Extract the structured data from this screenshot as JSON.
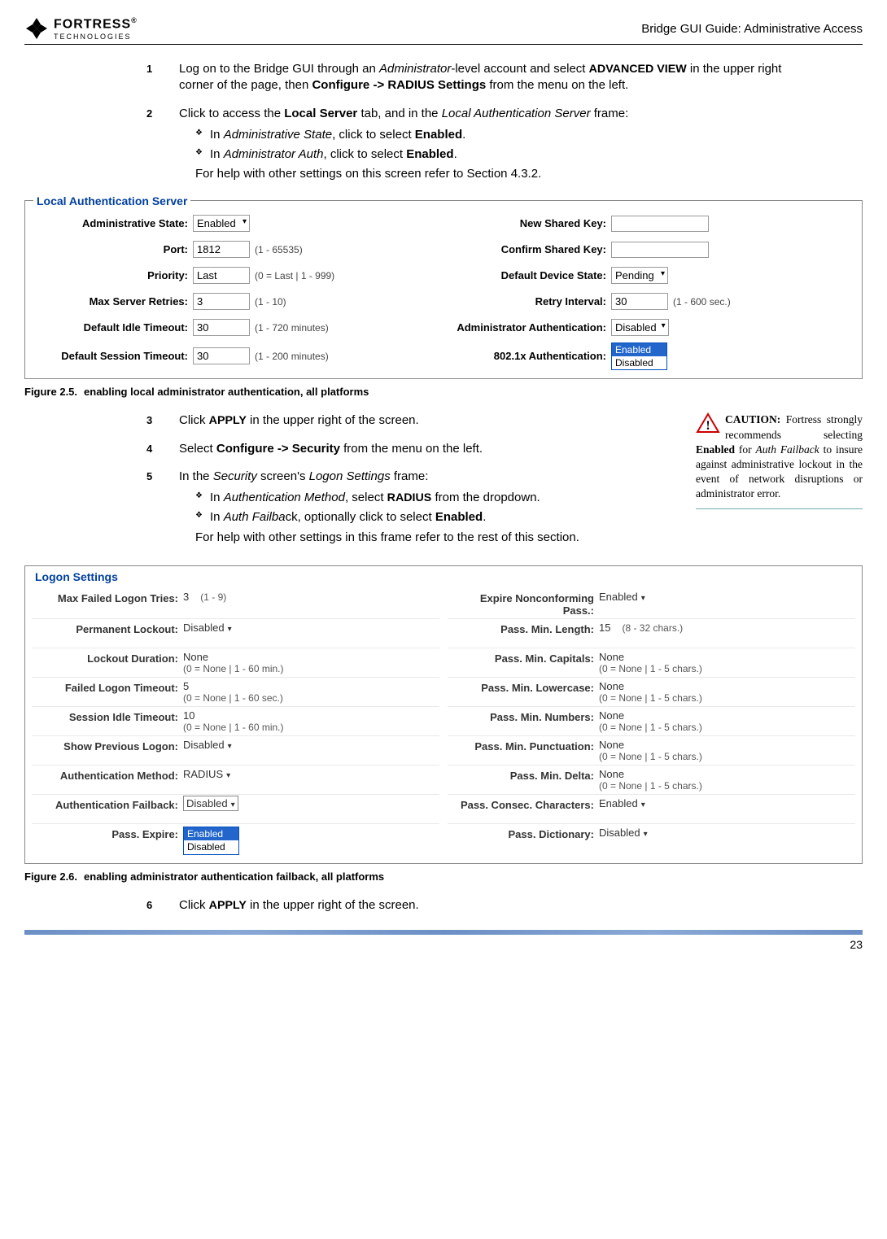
{
  "header": {
    "logo_name": "FORTRESS",
    "logo_sub": "TECHNOLOGIES",
    "guide_title": "Bridge GUI Guide: Administrative Access"
  },
  "steps": {
    "s1_num": "1",
    "s1_a": "Log on to the Bridge GUI through an ",
    "s1_b": "Administrator",
    "s1_c": "-level account and select ",
    "s1_d": "ADVANCED VIEW",
    "s1_e": " in the upper right corner of the page, then ",
    "s1_f": "Configure -> RADIUS Settings",
    "s1_g": " from the menu on the left.",
    "s2_num": "2",
    "s2_a": "Click to access the ",
    "s2_b": "Local Server",
    "s2_c": " tab, and in the ",
    "s2_d": "Local Authentication Server",
    "s2_e": " frame:",
    "s2_sub1_a": "In ",
    "s2_sub1_b": "Administrative State",
    "s2_sub1_c": ", click to select ",
    "s2_sub1_d": "Enabled",
    "s2_sub1_e": ".",
    "s2_sub2_a": "In ",
    "s2_sub2_b": "Administrator Auth",
    "s2_sub2_c": ", click to select ",
    "s2_sub2_d": "Enabled",
    "s2_sub2_e": ".",
    "s2_post": "For help with other settings on this screen refer to Section 4.3.2.",
    "s3_num": "3",
    "s3_a": "Click ",
    "s3_b": "APPLY",
    "s3_c": " in the upper right of the screen.",
    "s4_num": "4",
    "s4_a": "Select ",
    "s4_b": "Configure -> Security",
    "s4_c": " from the menu on the left.",
    "s5_num": "5",
    "s5_a": "In the ",
    "s5_b": "Security",
    "s5_c": " screen's ",
    "s5_d": "Logon Settings",
    "s5_e": " frame:",
    "s5_sub1_a": "In ",
    "s5_sub1_b": "Authentication Method",
    "s5_sub1_c": ", select ",
    "s5_sub1_d": "RADIUS",
    "s5_sub1_e": " from the dropdown.",
    "s5_sub2_a": "In ",
    "s5_sub2_b": "Auth Failba",
    "s5_sub2_c": "ck, optionally click to select ",
    "s5_sub2_d": "Enabled",
    "s5_sub2_e": ".",
    "s5_post": "For help with other settings in this frame refer to the rest of this section.",
    "s6_num": "6",
    "s6_a": "Click ",
    "s6_b": "APPLY",
    "s6_c": " in the upper right of the screen."
  },
  "fig25": {
    "num": "Figure 2.5.",
    "text": "enabling local administrator authentication, all platforms"
  },
  "fig26": {
    "num": "Figure 2.6.",
    "text": "enabling administrator authentication failback, all platforms"
  },
  "local_auth": {
    "legend": "Local Authentication Server",
    "left": [
      {
        "label": "Administrative State:",
        "value": "Enabled",
        "dropdown": true
      },
      {
        "label": "Port:",
        "value": "1812",
        "hint": "(1 - 65535)"
      },
      {
        "label": "Priority:",
        "value": "Last",
        "hint": "(0 = Last | 1 - 999)"
      },
      {
        "label": "Max Server Retries:",
        "value": "3",
        "hint": "(1 - 10)"
      },
      {
        "label": "Default Idle Timeout:",
        "value": "30",
        "hint": "(1 - 720 minutes)"
      },
      {
        "label": "Default Session Timeout:",
        "value": "30",
        "hint": "(1 - 200 minutes)"
      }
    ],
    "right": [
      {
        "label": "New Shared Key:",
        "value": "",
        "empty": true
      },
      {
        "label": "Confirm Shared Key:",
        "value": "",
        "empty": true
      },
      {
        "label": "Default Device State:",
        "value": "Pending",
        "dropdown": true
      },
      {
        "label": "Retry Interval:",
        "value": "30",
        "hint": "(1 - 600 sec.)"
      },
      {
        "label": "Administrator Authentication:",
        "value": "Disabled",
        "dropdown": true
      },
      {
        "label": "802.1x Authentication:",
        "open_dropdown": true,
        "opts": [
          "Enabled",
          "Disabled"
        ],
        "selected": 0
      }
    ]
  },
  "caution": {
    "head": "CAUTION:",
    "body1": " For­tress strongly rec­ommends selecting ",
    "bold": "Enabled",
    "body2": " for ",
    "italic": "Auth Fail­back",
    "body3": " to insure against administrative lockout in the event of network disruptions or adminis­trator error."
  },
  "logon": {
    "legend": "Logon Settings",
    "left": [
      {
        "label": "Max Failed Logon Tries:",
        "value": "3",
        "hint_inline": "(1 - 9)"
      },
      {
        "label": "Permanent Lockout:",
        "value": "Disabled",
        "dd": true
      },
      {
        "label": "Lockout Duration:",
        "value": "None",
        "hint": "(0 = None | 1 - 60 min.)"
      },
      {
        "label": "Failed Logon Timeout:",
        "value": "5",
        "hint": "(0 = None | 1 - 60 sec.)"
      },
      {
        "label": "Session Idle Timeout:",
        "value": "10",
        "hint": "(0 = None | 1 - 60 min.)"
      },
      {
        "label": "Show Previous Logon:",
        "value": "Disabled",
        "dd": true
      },
      {
        "label": "Authentication Method:",
        "value": "RADIUS",
        "dd": true
      },
      {
        "label": "Authentication Failback:",
        "value": "Disabled",
        "dd": true,
        "boxed": true
      },
      {
        "label": "Pass. Expire:",
        "open_dropdown": true,
        "opts": [
          "Enabled",
          "Disabled"
        ],
        "selected": 0
      }
    ],
    "right": [
      {
        "label": "Expire Nonconforming Pass.:",
        "value": "Enabled",
        "dd": true
      },
      {
        "label": "Pass. Min. Length:",
        "value": "15",
        "hint_inline": "(8 - 32 chars.)"
      },
      {
        "label": "Pass. Min. Capitals:",
        "value": "None",
        "hint": "(0 = None | 1 - 5 chars.)"
      },
      {
        "label": "Pass. Min. Lowercase:",
        "value": "None",
        "hint": "(0 = None | 1 - 5 chars.)"
      },
      {
        "label": "Pass. Min. Numbers:",
        "value": "None",
        "hint": "(0 = None | 1 - 5 chars.)"
      },
      {
        "label": "Pass. Min. Punctuation:",
        "value": "None",
        "hint": "(0 = None | 1 - 5 chars.)"
      },
      {
        "label": "Pass. Min. Delta:",
        "value": "None",
        "hint": "(0 = None | 1 - 5 chars.)"
      },
      {
        "label": "Pass. Consec. Characters:",
        "value": "Enabled",
        "dd": true
      },
      {
        "label": "Pass. Dictionary:",
        "value": "Disabled",
        "dd": true
      }
    ]
  },
  "page_number": "23",
  "colors": {
    "legend_blue": "#003f9f",
    "footer_blue": "#6b8fc5"
  }
}
